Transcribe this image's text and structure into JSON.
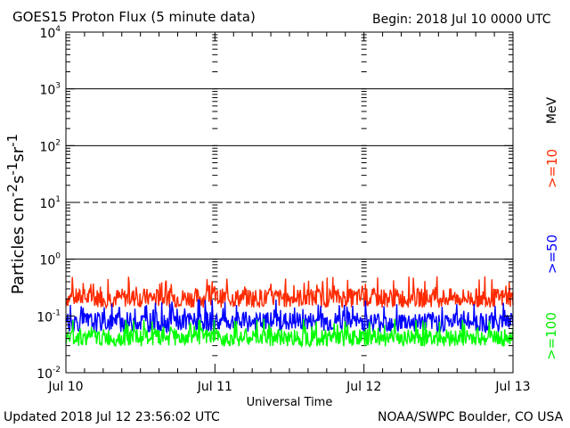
{
  "header": {
    "title": "GOES15 Proton Flux (5 minute data)",
    "begin": "Begin: 2018 Jul 10 0000 UTC"
  },
  "footer": {
    "updated": "Updated 2018 Jul 12 23:56:02 UTC",
    "credit": "NOAA/SWPC Boulder, CO USA"
  },
  "right_labels": {
    "unit": "MeV",
    "p10": ">=10",
    "p50": ">=50",
    "p100": ">=100"
  },
  "chart_data": {
    "type": "line",
    "title": "GOES15 Proton Flux (5 minute data)",
    "xlabel": "Universal Time",
    "ylabel": "Particles cm-2s-1sr-1",
    "yscale": "log",
    "ylim": [
      0.01,
      10000
    ],
    "xlim": [
      0,
      3
    ],
    "xticks": [
      "Jul 10",
      "Jul 11",
      "Jul 12",
      "Jul 13"
    ],
    "yticks": [
      {
        "base": "10",
        "exp": "-2"
      },
      {
        "base": "10",
        "exp": "-1"
      },
      {
        "base": "10",
        "exp": "0"
      },
      {
        "base": "10",
        "exp": "1"
      },
      {
        "base": "10",
        "exp": "2"
      },
      {
        "base": "10",
        "exp": "3"
      },
      {
        "base": "10",
        "exp": "4"
      }
    ],
    "grid": {
      "solid": [
        1,
        100,
        1000
      ],
      "dashed": [
        10
      ]
    },
    "series": [
      {
        "name": ">=10 MeV",
        "color": "#ff2a00",
        "typical": 0.2,
        "min": 0.12,
        "max": 0.5
      },
      {
        "name": ">=50 MeV",
        "color": "#0000ff",
        "typical": 0.075,
        "min": 0.045,
        "max": 0.2
      },
      {
        "name": ">=100 MeV",
        "color": "#00ff00",
        "typical": 0.04,
        "min": 0.025,
        "max": 0.09
      }
    ]
  }
}
